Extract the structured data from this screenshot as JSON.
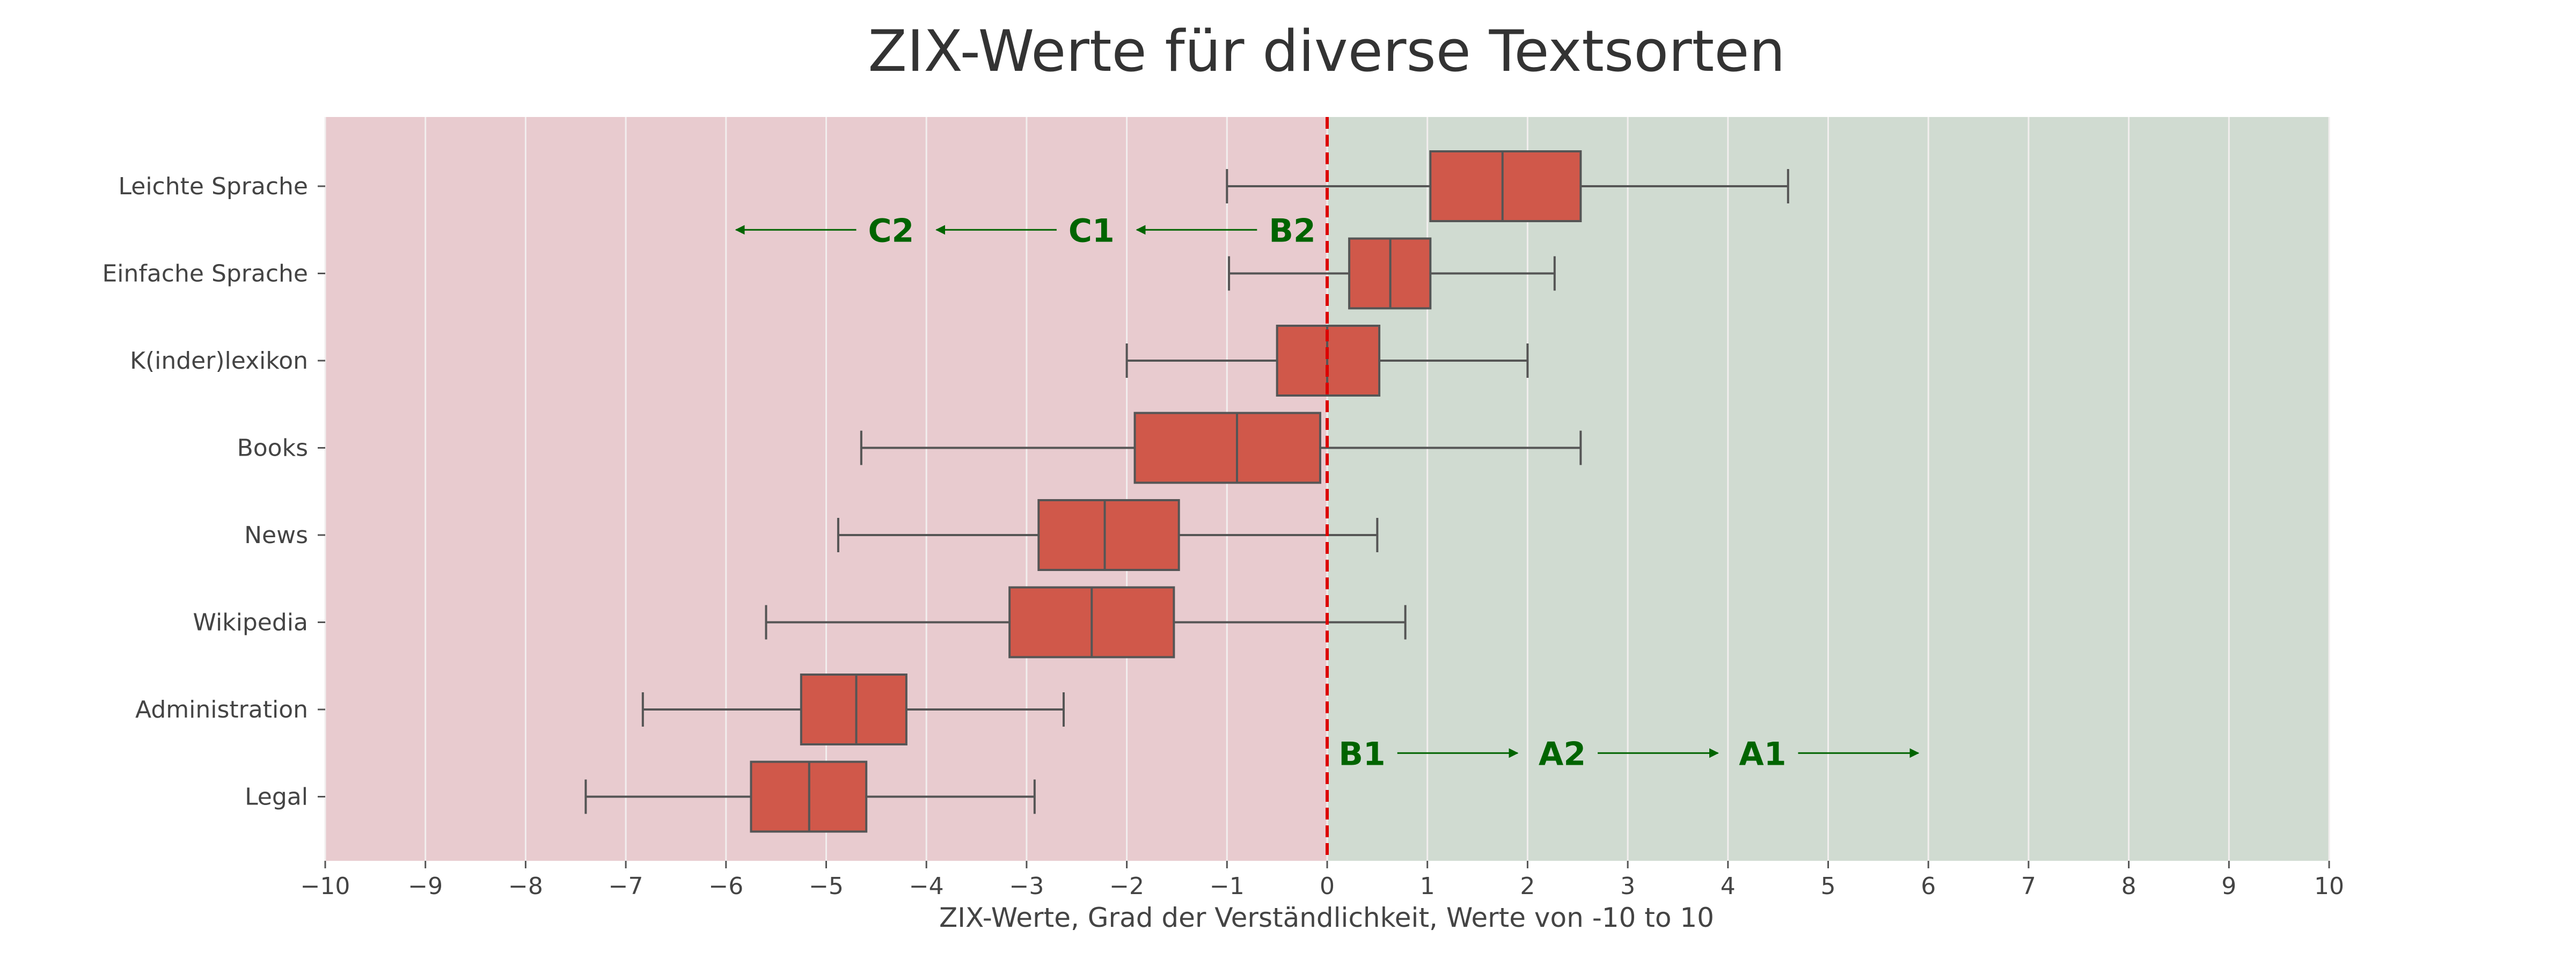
{
  "chart_data": {
    "type": "box",
    "title": "ZIX-Werte für diverse Textsorten",
    "xlabel": "ZIX-Werte, Grad der Verständlichkeit, Werte von -10 to 10",
    "ylabel": "",
    "xlim": [
      -10,
      10
    ],
    "xticks": [
      -10,
      -9,
      -8,
      -7,
      -6,
      -5,
      -4,
      -3,
      -2,
      -1,
      0,
      1,
      2,
      3,
      4,
      5,
      6,
      7,
      8,
      9,
      10
    ],
    "xtick_labels": [
      "−10",
      "−9",
      "−8",
      "−7",
      "−6",
      "−5",
      "−4",
      "−3",
      "−2",
      "−1",
      "0",
      "1",
      "2",
      "3",
      "4",
      "5",
      "6",
      "7",
      "8",
      "9",
      "10"
    ],
    "grid": true,
    "colors": {
      "box_fill": "#d0584a",
      "box_edge": "#555555",
      "whisker": "#555555",
      "negative_region": "#e8cbcf",
      "positive_region": "#d0dbd1",
      "grid": "#f2eeee",
      "zero_line": "#dd0000",
      "level_text": "#006400"
    },
    "categories": [
      "Leichte Sprache",
      "Einfache Sprache",
      "K(inder)lexikon",
      "Books",
      "News",
      "Wikipedia",
      "Administration",
      "Legal"
    ],
    "boxes": [
      {
        "whislo": -1.0,
        "q1": 1.03,
        "med": 1.75,
        "q3": 2.53,
        "whishi": 4.6
      },
      {
        "whislo": -0.98,
        "q1": 0.22,
        "med": 0.63,
        "q3": 1.03,
        "whishi": 2.27
      },
      {
        "whislo": -2.0,
        "q1": -0.5,
        "med": 0.0,
        "q3": 0.52,
        "whishi": 2.0
      },
      {
        "whislo": -4.65,
        "q1": -1.92,
        "med": -0.9,
        "q3": -0.07,
        "whishi": 2.53
      },
      {
        "whislo": -4.88,
        "q1": -2.88,
        "med": -2.22,
        "q3": -1.48,
        "whishi": 0.5
      },
      {
        "whislo": -5.6,
        "q1": -3.17,
        "med": -2.35,
        "q3": -1.53,
        "whishi": 0.78
      },
      {
        "whislo": -6.83,
        "q1": -5.25,
        "med": -4.7,
        "q3": -4.2,
        "whishi": -2.63
      },
      {
        "whislo": -7.4,
        "q1": -5.75,
        "med": -5.17,
        "q3": -4.6,
        "whishi": -2.92
      }
    ],
    "reference_line": {
      "x": 0,
      "style": "dashed"
    },
    "annotations": {
      "upper": [
        {
          "label": "B2",
          "arrow_from": -0.7,
          "arrow_to": -1.9
        },
        {
          "label": "C1",
          "arrow_from": -2.7,
          "arrow_to": -3.9
        },
        {
          "label": "C2",
          "arrow_from": -4.7,
          "arrow_to": -5.9
        }
      ],
      "lower": [
        {
          "label": "B1",
          "arrow_from": 0.7,
          "arrow_to": 1.9
        },
        {
          "label": "A2",
          "arrow_from": 2.7,
          "arrow_to": 3.9
        },
        {
          "label": "A1",
          "arrow_from": 4.7,
          "arrow_to": 5.9
        }
      ]
    }
  }
}
